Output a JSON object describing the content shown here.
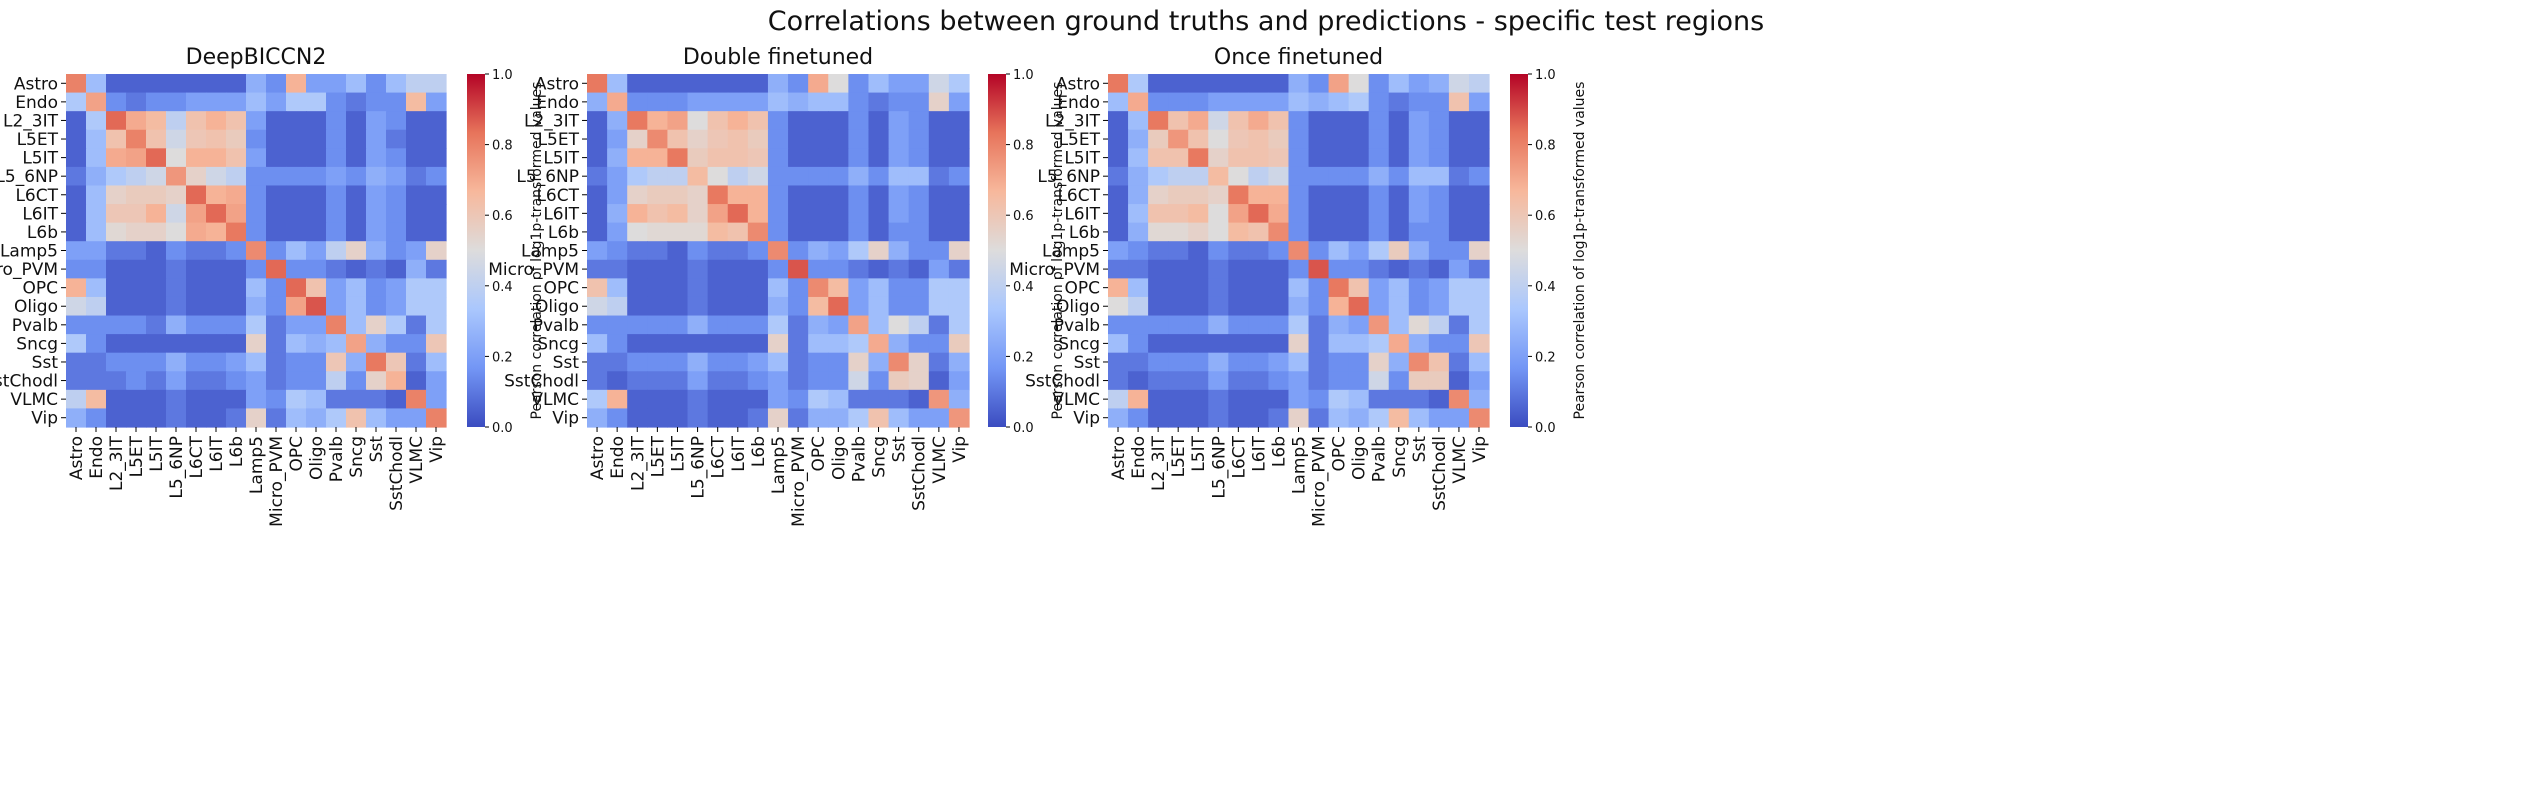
{
  "figure_title": "Correlations between ground truths and predictions - specific test regions",
  "colormap": "coolwarm",
  "colorbar": {
    "label": "Pearson correlation of log1p-transformed values",
    "range": [
      0.0,
      1.0
    ],
    "ticks": [
      "0.0",
      "0.2",
      "0.4",
      "0.6",
      "0.8",
      "1.0"
    ],
    "colors": [
      "#3b4cc0",
      "#7396f5",
      "#aac7fd",
      "#dddcdc",
      "#f7b89c",
      "#e7745b",
      "#b40426"
    ]
  },
  "chart_data": [
    {
      "type": "heatmap",
      "title": "DeepBICCN2",
      "categories": [
        "Astro",
        "Endo",
        "L2_3IT",
        "L5ET",
        "L5IT",
        "L5_6NP",
        "L6CT",
        "L6IT",
        "L6b",
        "Lamp5",
        "Micro_PVM",
        "OPC",
        "Oligo",
        "Pvalb",
        "Sncg",
        "Sst",
        "SstChodl",
        "VLMC",
        "Vip"
      ],
      "values": [
        [
          0.8,
          0.3,
          0.05,
          0.05,
          0.05,
          0.05,
          0.05,
          0.05,
          0.05,
          0.25,
          0.15,
          0.68,
          0.2,
          0.2,
          0.3,
          0.15,
          0.3,
          0.4,
          0.4
        ],
        [
          0.35,
          0.72,
          0.15,
          0.1,
          0.15,
          0.15,
          0.2,
          0.2,
          0.2,
          0.3,
          0.2,
          0.35,
          0.35,
          0.15,
          0.1,
          0.15,
          0.15,
          0.65,
          0.2
        ],
        [
          0.05,
          0.35,
          0.85,
          0.7,
          0.65,
          0.4,
          0.62,
          0.68,
          0.62,
          0.2,
          0.05,
          0.05,
          0.05,
          0.15,
          0.05,
          0.2,
          0.15,
          0.05,
          0.05
        ],
        [
          0.05,
          0.3,
          0.62,
          0.8,
          0.62,
          0.45,
          0.6,
          0.62,
          0.58,
          0.15,
          0.05,
          0.05,
          0.05,
          0.15,
          0.05,
          0.2,
          0.1,
          0.05,
          0.05
        ],
        [
          0.05,
          0.3,
          0.7,
          0.72,
          0.85,
          0.5,
          0.68,
          0.68,
          0.62,
          0.2,
          0.05,
          0.05,
          0.05,
          0.15,
          0.05,
          0.2,
          0.15,
          0.05,
          0.05
        ],
        [
          0.1,
          0.25,
          0.35,
          0.4,
          0.45,
          0.75,
          0.55,
          0.45,
          0.4,
          0.15,
          0.15,
          0.15,
          0.15,
          0.2,
          0.15,
          0.25,
          0.2,
          0.1,
          0.15
        ],
        [
          0.05,
          0.3,
          0.55,
          0.58,
          0.58,
          0.55,
          0.85,
          0.68,
          0.7,
          0.15,
          0.05,
          0.05,
          0.05,
          0.15,
          0.05,
          0.2,
          0.15,
          0.05,
          0.05
        ],
        [
          0.05,
          0.3,
          0.6,
          0.6,
          0.68,
          0.45,
          0.72,
          0.85,
          0.72,
          0.15,
          0.05,
          0.05,
          0.05,
          0.15,
          0.05,
          0.2,
          0.15,
          0.05,
          0.05
        ],
        [
          0.05,
          0.3,
          0.52,
          0.55,
          0.55,
          0.5,
          0.7,
          0.68,
          0.82,
          0.15,
          0.05,
          0.05,
          0.05,
          0.15,
          0.05,
          0.2,
          0.15,
          0.05,
          0.05
        ],
        [
          0.2,
          0.2,
          0.1,
          0.1,
          0.05,
          0.15,
          0.1,
          0.1,
          0.15,
          0.78,
          0.15,
          0.3,
          0.2,
          0.4,
          0.55,
          0.25,
          0.15,
          0.2,
          0.55
        ],
        [
          0.15,
          0.15,
          0.05,
          0.05,
          0.05,
          0.1,
          0.05,
          0.05,
          0.05,
          0.15,
          0.85,
          0.15,
          0.15,
          0.1,
          0.05,
          0.1,
          0.05,
          0.25,
          0.1
        ],
        [
          0.68,
          0.3,
          0.05,
          0.05,
          0.05,
          0.1,
          0.05,
          0.05,
          0.05,
          0.3,
          0.15,
          0.85,
          0.62,
          0.2,
          0.3,
          0.15,
          0.2,
          0.35,
          0.35
        ],
        [
          0.45,
          0.4,
          0.05,
          0.05,
          0.05,
          0.1,
          0.05,
          0.05,
          0.05,
          0.25,
          0.15,
          0.72,
          0.88,
          0.2,
          0.3,
          0.15,
          0.2,
          0.35,
          0.35
        ],
        [
          0.15,
          0.15,
          0.15,
          0.15,
          0.1,
          0.25,
          0.15,
          0.15,
          0.15,
          0.35,
          0.1,
          0.2,
          0.2,
          0.8,
          0.3,
          0.55,
          0.35,
          0.1,
          0.35
        ],
        [
          0.35,
          0.15,
          0.05,
          0.05,
          0.05,
          0.05,
          0.05,
          0.05,
          0.05,
          0.55,
          0.1,
          0.3,
          0.25,
          0.3,
          0.72,
          0.25,
          0.15,
          0.15,
          0.6
        ],
        [
          0.1,
          0.1,
          0.15,
          0.15,
          0.15,
          0.25,
          0.15,
          0.15,
          0.2,
          0.3,
          0.1,
          0.15,
          0.15,
          0.6,
          0.25,
          0.82,
          0.6,
          0.1,
          0.3
        ],
        [
          0.1,
          0.1,
          0.1,
          0.15,
          0.1,
          0.2,
          0.1,
          0.1,
          0.15,
          0.2,
          0.1,
          0.15,
          0.15,
          0.4,
          0.15,
          0.55,
          0.68,
          0.05,
          0.2
        ],
        [
          0.4,
          0.65,
          0.05,
          0.05,
          0.05,
          0.1,
          0.05,
          0.05,
          0.05,
          0.2,
          0.15,
          0.35,
          0.3,
          0.1,
          0.1,
          0.1,
          0.05,
          0.8,
          0.2
        ],
        [
          0.25,
          0.15,
          0.05,
          0.05,
          0.05,
          0.1,
          0.05,
          0.05,
          0.1,
          0.55,
          0.1,
          0.3,
          0.25,
          0.35,
          0.62,
          0.3,
          0.2,
          0.2,
          0.8
        ]
      ]
    },
    {
      "type": "heatmap",
      "title": "Double finetuned",
      "categories": [
        "Astro",
        "Endo",
        "L2_3IT",
        "L5ET",
        "L5IT",
        "L5_6NP",
        "L6CT",
        "L6IT",
        "L6b",
        "Lamp5",
        "Micro_PVM",
        "OPC",
        "Oligo",
        "Pvalb",
        "Sncg",
        "Sst",
        "SstChodl",
        "VLMC",
        "Vip"
      ],
      "values": [
        [
          0.82,
          0.3,
          0.05,
          0.05,
          0.05,
          0.05,
          0.05,
          0.05,
          0.05,
          0.25,
          0.15,
          0.7,
          0.5,
          0.15,
          0.3,
          0.2,
          0.2,
          0.45,
          0.35
        ],
        [
          0.25,
          0.7,
          0.15,
          0.15,
          0.15,
          0.2,
          0.2,
          0.2,
          0.2,
          0.3,
          0.25,
          0.3,
          0.3,
          0.15,
          0.1,
          0.15,
          0.15,
          0.55,
          0.2
        ],
        [
          0.05,
          0.25,
          0.82,
          0.68,
          0.72,
          0.5,
          0.62,
          0.68,
          0.62,
          0.15,
          0.05,
          0.05,
          0.05,
          0.15,
          0.05,
          0.2,
          0.15,
          0.05,
          0.05
        ],
        [
          0.05,
          0.2,
          0.55,
          0.78,
          0.62,
          0.55,
          0.6,
          0.62,
          0.58,
          0.15,
          0.05,
          0.05,
          0.05,
          0.15,
          0.05,
          0.2,
          0.15,
          0.05,
          0.05
        ],
        [
          0.05,
          0.25,
          0.68,
          0.68,
          0.82,
          0.58,
          0.62,
          0.62,
          0.6,
          0.15,
          0.05,
          0.05,
          0.05,
          0.15,
          0.05,
          0.2,
          0.15,
          0.05,
          0.05
        ],
        [
          0.1,
          0.2,
          0.35,
          0.4,
          0.4,
          0.65,
          0.5,
          0.4,
          0.45,
          0.15,
          0.15,
          0.15,
          0.15,
          0.25,
          0.15,
          0.3,
          0.3,
          0.1,
          0.15
        ],
        [
          0.05,
          0.2,
          0.55,
          0.58,
          0.58,
          0.55,
          0.82,
          0.68,
          0.68,
          0.15,
          0.05,
          0.05,
          0.05,
          0.15,
          0.05,
          0.2,
          0.15,
          0.05,
          0.05
        ],
        [
          0.05,
          0.25,
          0.68,
          0.62,
          0.65,
          0.55,
          0.72,
          0.85,
          0.68,
          0.15,
          0.05,
          0.05,
          0.05,
          0.15,
          0.05,
          0.2,
          0.15,
          0.05,
          0.05
        ],
        [
          0.05,
          0.2,
          0.5,
          0.52,
          0.52,
          0.52,
          0.65,
          0.62,
          0.78,
          0.15,
          0.05,
          0.05,
          0.05,
          0.15,
          0.05,
          0.15,
          0.15,
          0.05,
          0.05
        ],
        [
          0.2,
          0.15,
          0.1,
          0.1,
          0.05,
          0.15,
          0.1,
          0.1,
          0.15,
          0.78,
          0.15,
          0.25,
          0.2,
          0.35,
          0.55,
          0.25,
          0.15,
          0.15,
          0.55
        ],
        [
          0.1,
          0.1,
          0.05,
          0.05,
          0.05,
          0.1,
          0.05,
          0.05,
          0.05,
          0.15,
          0.88,
          0.15,
          0.15,
          0.1,
          0.05,
          0.1,
          0.05,
          0.2,
          0.1
        ],
        [
          0.62,
          0.3,
          0.05,
          0.05,
          0.05,
          0.1,
          0.05,
          0.05,
          0.05,
          0.3,
          0.15,
          0.78,
          0.65,
          0.2,
          0.3,
          0.15,
          0.15,
          0.35,
          0.35
        ],
        [
          0.45,
          0.4,
          0.05,
          0.05,
          0.05,
          0.1,
          0.05,
          0.05,
          0.05,
          0.25,
          0.15,
          0.65,
          0.85,
          0.2,
          0.3,
          0.15,
          0.15,
          0.35,
          0.35
        ],
        [
          0.15,
          0.15,
          0.15,
          0.15,
          0.15,
          0.25,
          0.15,
          0.15,
          0.15,
          0.35,
          0.1,
          0.25,
          0.2,
          0.72,
          0.3,
          0.5,
          0.4,
          0.1,
          0.35
        ],
        [
          0.3,
          0.15,
          0.05,
          0.05,
          0.05,
          0.05,
          0.05,
          0.05,
          0.05,
          0.55,
          0.1,
          0.3,
          0.3,
          0.35,
          0.7,
          0.25,
          0.15,
          0.15,
          0.58
        ],
        [
          0.1,
          0.1,
          0.15,
          0.15,
          0.15,
          0.25,
          0.15,
          0.15,
          0.2,
          0.3,
          0.1,
          0.15,
          0.15,
          0.55,
          0.25,
          0.78,
          0.55,
          0.1,
          0.25
        ],
        [
          0.1,
          0.05,
          0.1,
          0.1,
          0.1,
          0.2,
          0.1,
          0.1,
          0.15,
          0.2,
          0.1,
          0.15,
          0.15,
          0.45,
          0.15,
          0.58,
          0.55,
          0.05,
          0.2
        ],
        [
          0.35,
          0.68,
          0.05,
          0.05,
          0.05,
          0.1,
          0.05,
          0.05,
          0.05,
          0.2,
          0.15,
          0.35,
          0.3,
          0.1,
          0.1,
          0.1,
          0.05,
          0.75,
          0.25
        ],
        [
          0.25,
          0.15,
          0.05,
          0.05,
          0.05,
          0.1,
          0.05,
          0.05,
          0.1,
          0.55,
          0.1,
          0.25,
          0.25,
          0.35,
          0.62,
          0.3,
          0.2,
          0.2,
          0.75
        ]
      ]
    },
    {
      "type": "heatmap",
      "title": "Once finetuned",
      "categories": [
        "Astro",
        "Endo",
        "L2_3IT",
        "L5ET",
        "L5IT",
        "L5_6NP",
        "L6CT",
        "L6IT",
        "L6b",
        "Lamp5",
        "Micro_PVM",
        "OPC",
        "Oligo",
        "Pvalb",
        "Sncg",
        "Sst",
        "SstChodl",
        "VLMC",
        "Vip"
      ],
      "values": [
        [
          0.82,
          0.35,
          0.05,
          0.05,
          0.05,
          0.05,
          0.05,
          0.05,
          0.05,
          0.25,
          0.15,
          0.72,
          0.5,
          0.15,
          0.3,
          0.2,
          0.25,
          0.45,
          0.4
        ],
        [
          0.3,
          0.7,
          0.15,
          0.15,
          0.15,
          0.2,
          0.2,
          0.2,
          0.2,
          0.3,
          0.25,
          0.3,
          0.35,
          0.15,
          0.1,
          0.15,
          0.15,
          0.62,
          0.2
        ],
        [
          0.05,
          0.3,
          0.82,
          0.62,
          0.7,
          0.45,
          0.62,
          0.7,
          0.62,
          0.15,
          0.05,
          0.05,
          0.05,
          0.15,
          0.05,
          0.2,
          0.15,
          0.05,
          0.05
        ],
        [
          0.05,
          0.25,
          0.58,
          0.75,
          0.62,
          0.5,
          0.6,
          0.62,
          0.58,
          0.15,
          0.05,
          0.05,
          0.05,
          0.15,
          0.05,
          0.2,
          0.15,
          0.05,
          0.05
        ],
        [
          0.05,
          0.3,
          0.62,
          0.62,
          0.82,
          0.55,
          0.62,
          0.62,
          0.6,
          0.15,
          0.05,
          0.05,
          0.05,
          0.15,
          0.05,
          0.2,
          0.15,
          0.05,
          0.05
        ],
        [
          0.1,
          0.25,
          0.35,
          0.4,
          0.4,
          0.65,
          0.5,
          0.4,
          0.45,
          0.15,
          0.15,
          0.15,
          0.15,
          0.25,
          0.15,
          0.3,
          0.3,
          0.1,
          0.15
        ],
        [
          0.05,
          0.25,
          0.55,
          0.58,
          0.58,
          0.55,
          0.82,
          0.68,
          0.68,
          0.15,
          0.05,
          0.05,
          0.05,
          0.15,
          0.05,
          0.2,
          0.15,
          0.05,
          0.05
        ],
        [
          0.05,
          0.3,
          0.62,
          0.62,
          0.65,
          0.5,
          0.72,
          0.85,
          0.7,
          0.15,
          0.05,
          0.05,
          0.05,
          0.15,
          0.05,
          0.2,
          0.15,
          0.05,
          0.05
        ],
        [
          0.05,
          0.25,
          0.52,
          0.52,
          0.55,
          0.5,
          0.65,
          0.62,
          0.78,
          0.15,
          0.05,
          0.05,
          0.05,
          0.15,
          0.05,
          0.15,
          0.15,
          0.05,
          0.05
        ],
        [
          0.2,
          0.15,
          0.1,
          0.1,
          0.05,
          0.15,
          0.1,
          0.1,
          0.15,
          0.78,
          0.15,
          0.3,
          0.2,
          0.35,
          0.58,
          0.25,
          0.15,
          0.15,
          0.55
        ],
        [
          0.1,
          0.1,
          0.05,
          0.05,
          0.05,
          0.1,
          0.05,
          0.05,
          0.05,
          0.15,
          0.88,
          0.15,
          0.15,
          0.1,
          0.05,
          0.1,
          0.05,
          0.2,
          0.1
        ],
        [
          0.68,
          0.3,
          0.05,
          0.05,
          0.05,
          0.1,
          0.05,
          0.05,
          0.05,
          0.3,
          0.15,
          0.82,
          0.62,
          0.2,
          0.3,
          0.15,
          0.2,
          0.35,
          0.35
        ],
        [
          0.5,
          0.4,
          0.05,
          0.05,
          0.05,
          0.1,
          0.05,
          0.05,
          0.05,
          0.25,
          0.15,
          0.68,
          0.85,
          0.2,
          0.3,
          0.15,
          0.2,
          0.35,
          0.35
        ],
        [
          0.15,
          0.15,
          0.15,
          0.15,
          0.15,
          0.25,
          0.15,
          0.15,
          0.15,
          0.35,
          0.1,
          0.25,
          0.2,
          0.75,
          0.3,
          0.52,
          0.4,
          0.1,
          0.35
        ],
        [
          0.3,
          0.15,
          0.05,
          0.05,
          0.05,
          0.05,
          0.05,
          0.05,
          0.05,
          0.55,
          0.1,
          0.3,
          0.3,
          0.35,
          0.7,
          0.25,
          0.15,
          0.15,
          0.6
        ],
        [
          0.1,
          0.1,
          0.15,
          0.15,
          0.15,
          0.25,
          0.15,
          0.15,
          0.2,
          0.3,
          0.1,
          0.15,
          0.15,
          0.55,
          0.25,
          0.78,
          0.62,
          0.1,
          0.3
        ],
        [
          0.1,
          0.05,
          0.1,
          0.1,
          0.1,
          0.2,
          0.1,
          0.1,
          0.15,
          0.2,
          0.1,
          0.15,
          0.15,
          0.45,
          0.15,
          0.58,
          0.58,
          0.05,
          0.2
        ],
        [
          0.4,
          0.68,
          0.05,
          0.05,
          0.05,
          0.1,
          0.05,
          0.05,
          0.05,
          0.2,
          0.15,
          0.35,
          0.3,
          0.1,
          0.1,
          0.1,
          0.05,
          0.78,
          0.25
        ],
        [
          0.25,
          0.15,
          0.05,
          0.05,
          0.05,
          0.1,
          0.05,
          0.05,
          0.1,
          0.55,
          0.1,
          0.3,
          0.25,
          0.35,
          0.65,
          0.3,
          0.2,
          0.2,
          0.78
        ]
      ]
    }
  ]
}
